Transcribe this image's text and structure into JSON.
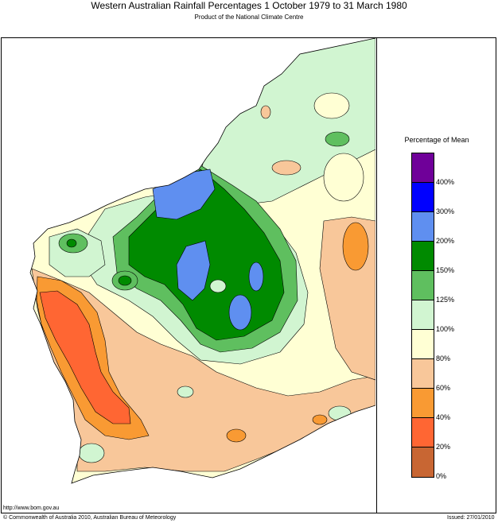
{
  "header": {
    "title": "Western Australian Rainfall Percentages 1 October 1979 to 31 March 1980",
    "subtitle": "Product of the National Climate Centre"
  },
  "legend": {
    "title": "Percentage of Mean",
    "bins": [
      {
        "from": 400,
        "to": null,
        "color": "#6f0099"
      },
      {
        "from": 300,
        "to": 400,
        "color": "#0000ff"
      },
      {
        "from": 200,
        "to": 300,
        "color": "#5f8ff0"
      },
      {
        "from": 150,
        "to": 200,
        "color": "#008a00"
      },
      {
        "from": 125,
        "to": 150,
        "color": "#5fbf5f"
      },
      {
        "from": 100,
        "to": 125,
        "color": "#d1f5d1"
      },
      {
        "from": 80,
        "to": 100,
        "color": "#ffffd4"
      },
      {
        "from": 60,
        "to": 80,
        "color": "#f8c79a"
      },
      {
        "from": 40,
        "to": 60,
        "color": "#f99a33"
      },
      {
        "from": 20,
        "to": 40,
        "color": "#ff6633"
      },
      {
        "from": 0,
        "to": 20,
        "color": "#c86633"
      }
    ],
    "labels": [
      "400%",
      "300%",
      "200%",
      "150%",
      "125%",
      "100%",
      "80%",
      "60%",
      "40%",
      "20%",
      "0%"
    ]
  },
  "footer": {
    "url": "http://www.bom.gov.au",
    "copyright": "© Commonwealth of Australia 2010, Australian Bureau of Meteorology",
    "issued": "Issued: 27/01/2010"
  }
}
